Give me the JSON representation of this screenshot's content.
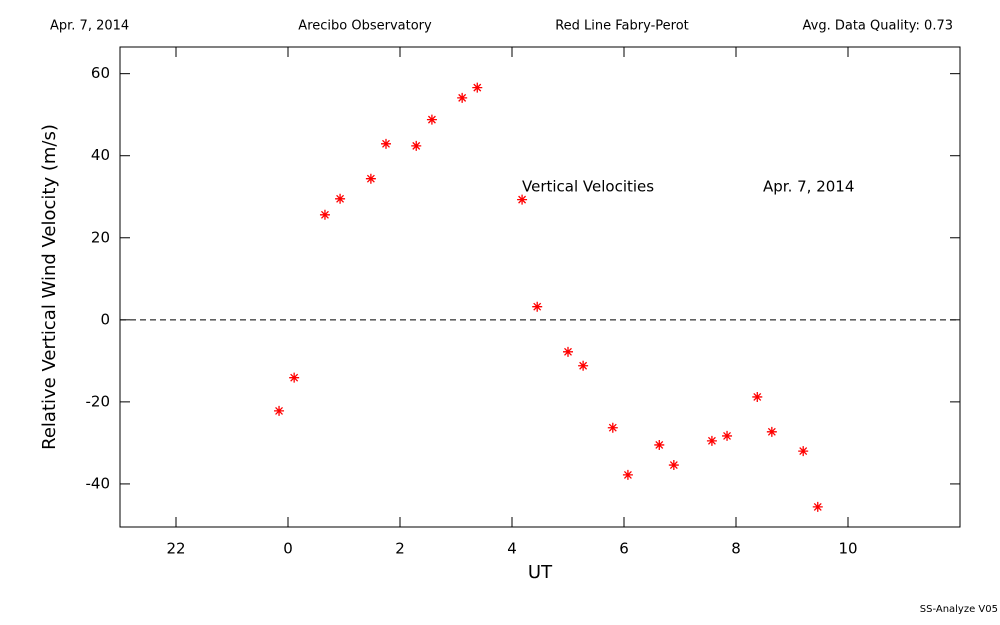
{
  "chart_data": {
    "type": "scatter",
    "header": [
      "Apr. 7, 2014",
      "Arecibo Observatory",
      "Red Line Fabry-Perot",
      "Avg. Data Quality: 0.73"
    ],
    "xlabel": "UT",
    "ylabel": "Relative Vertical Wind Velocity (m/s)",
    "annotations": [
      "Vertical Velocities",
      "Apr. 7, 2014"
    ],
    "footer": "SS-Analyze V05",
    "series": [
      {
        "name": "Vertical Velocities",
        "color": "#ff0000",
        "x": [
          -0.16,
          0.11,
          0.66,
          0.93,
          1.48,
          1.75,
          2.29,
          2.57,
          3.11,
          3.38,
          4.18,
          4.45,
          5.0,
          5.27,
          5.8,
          6.07,
          6.63,
          6.89,
          7.57,
          7.84,
          8.38,
          8.64,
          9.2,
          9.46
        ],
        "values": [
          -22.2,
          -14.1,
          25.6,
          29.5,
          34.4,
          42.9,
          42.4,
          48.8,
          54.1,
          56.6,
          29.3,
          3.2,
          -7.8,
          -11.2,
          -26.3,
          -37.8,
          -30.5,
          -35.4,
          -29.5,
          -28.3,
          -18.8,
          -27.3,
          -32.0,
          -45.6
        ]
      }
    ],
    "xlim": [
      -3,
      12
    ],
    "xticks": [
      {
        "value": -2,
        "label": "22"
      },
      0,
      2,
      4,
      6,
      8,
      10
    ],
    "ylim": [
      -50.5,
      66.5
    ],
    "yticks": [
      -40,
      -20,
      0,
      20,
      40,
      60
    ],
    "reference_line": 0
  }
}
